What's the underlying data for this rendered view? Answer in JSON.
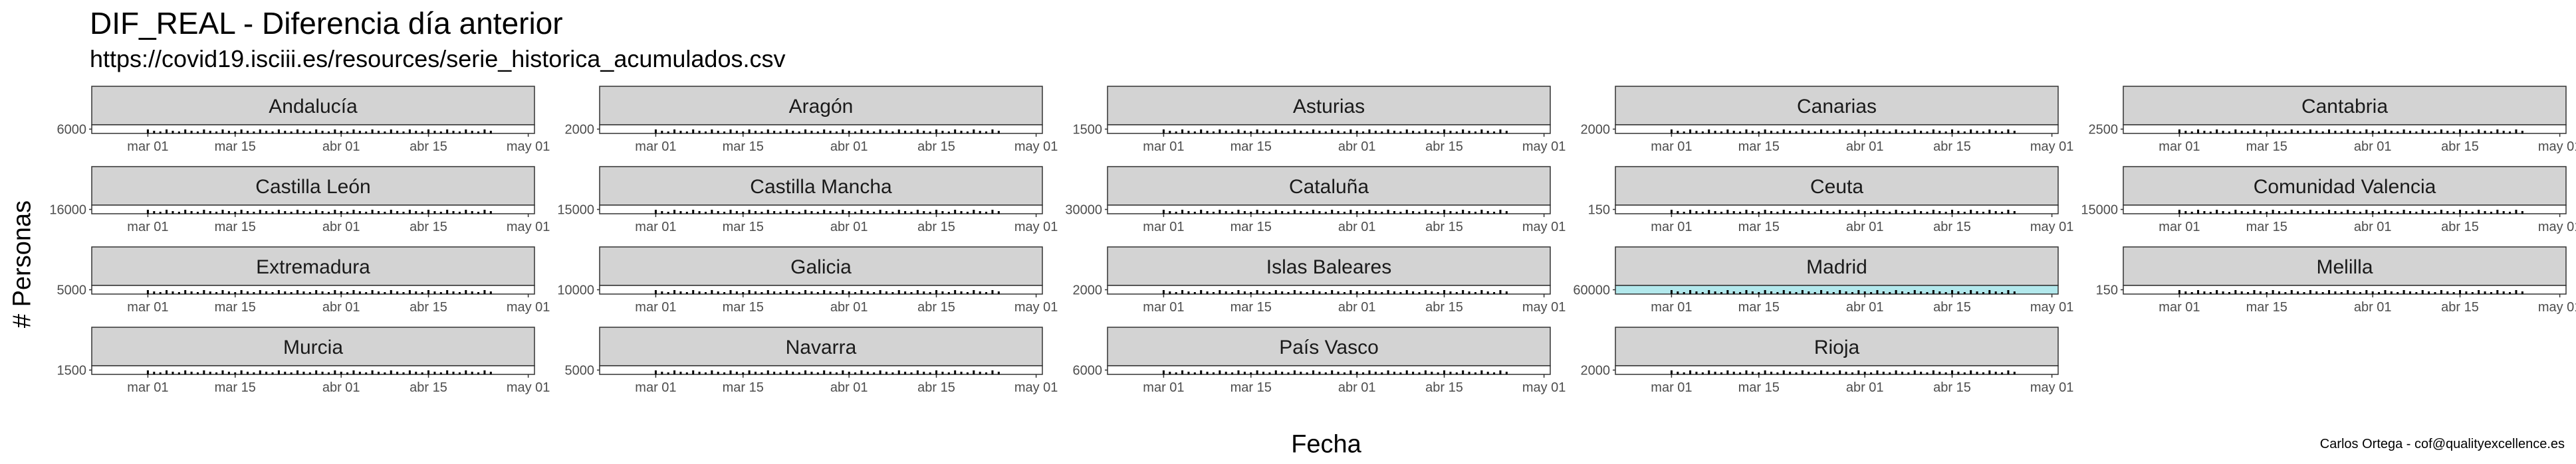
{
  "chart_data": {
    "type": "bar",
    "title": "DIF_REAL - Diferencia día anterior",
    "subtitle": "https://covid19.isciii.es/resources/serie_historica_acumulados.csv",
    "xlabel": "Fecha",
    "ylabel": "# Personas",
    "caption": "Carlos Ortega - cof@qualityexcellence.es",
    "x_ticks": [
      "mar 01",
      "mar 15",
      "abr 01",
      "abr 15",
      "may 01"
    ],
    "x_tick_dates": [
      "2020-03-01",
      "2020-03-15",
      "2020-04-01",
      "2020-04-15",
      "2020-05-01"
    ],
    "xlim": [
      "2020-02-21",
      "2020-05-02"
    ],
    "data_range": [
      "2020-03-01",
      "2020-04-25"
    ],
    "grid": false,
    "legend": "none",
    "bar_color": "#000000",
    "highlight_color": "#b2e8ec",
    "strip_color": "#d3d3d3",
    "panels": [
      {
        "name": "Andalucía",
        "y_tick": "6000",
        "highlight": false
      },
      {
        "name": "Aragón",
        "y_tick": "2000",
        "highlight": false
      },
      {
        "name": "Asturias",
        "y_tick": "1500",
        "highlight": false
      },
      {
        "name": "Canarias",
        "y_tick": "2000",
        "highlight": false
      },
      {
        "name": "Cantabria",
        "y_tick": "2500",
        "highlight": false
      },
      {
        "name": "Castilla León",
        "y_tick": "16000",
        "highlight": false
      },
      {
        "name": "Castilla Mancha",
        "y_tick": "15000",
        "highlight": false
      },
      {
        "name": "Cataluña",
        "y_tick": "30000",
        "highlight": false
      },
      {
        "name": "Ceuta",
        "y_tick": "150",
        "highlight": false
      },
      {
        "name": "Comunidad Valencia",
        "y_tick": "15000",
        "highlight": false
      },
      {
        "name": "Extremadura",
        "y_tick": "5000",
        "highlight": false
      },
      {
        "name": "Galicia",
        "y_tick": "10000",
        "highlight": false
      },
      {
        "name": "Islas Baleares",
        "y_tick": "2000",
        "highlight": false
      },
      {
        "name": "Madrid",
        "y_tick": "60000",
        "highlight": true
      },
      {
        "name": "Melilla",
        "y_tick": "150",
        "highlight": false
      },
      {
        "name": "Murcia",
        "y_tick": "1500",
        "highlight": false
      },
      {
        "name": "Navarra",
        "y_tick": "5000",
        "highlight": false
      },
      {
        "name": "País Vasco",
        "y_tick": "6000",
        "highlight": false
      },
      {
        "name": "Rioja",
        "y_tick": "2000",
        "highlight": false
      }
    ]
  }
}
